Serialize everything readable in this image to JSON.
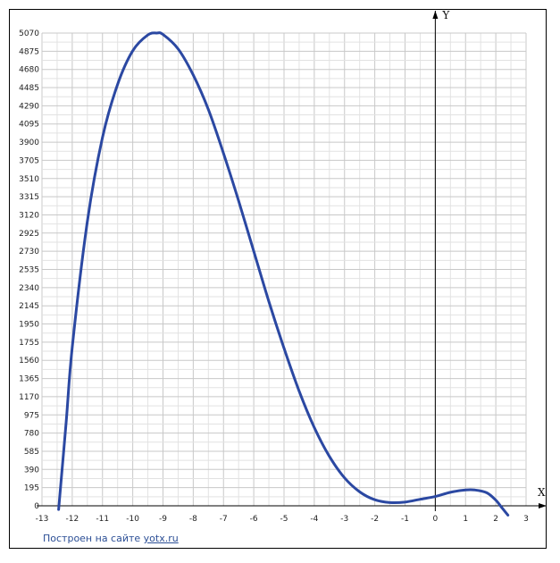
{
  "chart_data": {
    "type": "line",
    "title": "",
    "xlabel": "X",
    "ylabel": "Y",
    "xlim": [
      -13,
      3
    ],
    "ylim": [
      0,
      5070
    ],
    "grid": true,
    "x_ticks": [
      "-13",
      "-12",
      "-11",
      "-10",
      "-9",
      "-8",
      "-7",
      "-6",
      "-5",
      "-4",
      "-3",
      "-2",
      "-1",
      "0",
      "1",
      "2",
      "3"
    ],
    "y_ticks": [
      "0",
      "195",
      "390",
      "585",
      "780",
      "975",
      "1170",
      "1365",
      "1560",
      "1755",
      "1950",
      "2145",
      "2340",
      "2535",
      "2730",
      "2925",
      "3120",
      "3315",
      "3510",
      "3705",
      "3900",
      "4095",
      "4290",
      "4485",
      "4680",
      "4875",
      "5070"
    ],
    "series": [
      {
        "color": "#2b48a2",
        "x": [
          -12.45,
          -12.2,
          -12.0,
          -11.5,
          -11.0,
          -10.5,
          -10.0,
          -9.5,
          -9.2,
          -9.0,
          -8.5,
          -8.0,
          -7.5,
          -7.0,
          -6.5,
          -6.0,
          -5.5,
          -5.0,
          -4.5,
          -4.0,
          -3.5,
          -3.0,
          -2.5,
          -2.0,
          -1.5,
          -1.0,
          -0.5,
          0.0,
          0.5,
          1.0,
          1.3,
          1.7,
          2.0,
          2.2,
          2.4
        ],
        "y": [
          -40,
          900,
          1700,
          3050,
          3950,
          4520,
          4880,
          5050,
          5070,
          5055,
          4900,
          4620,
          4250,
          3780,
          3270,
          2730,
          2190,
          1690,
          1230,
          840,
          530,
          300,
          150,
          65,
          35,
          40,
          70,
          100,
          145,
          170,
          170,
          140,
          60,
          -20,
          -100
        ]
      }
    ]
  },
  "credit": {
    "prefix": "Построен на сайте",
    "link": "yotx.ru"
  }
}
